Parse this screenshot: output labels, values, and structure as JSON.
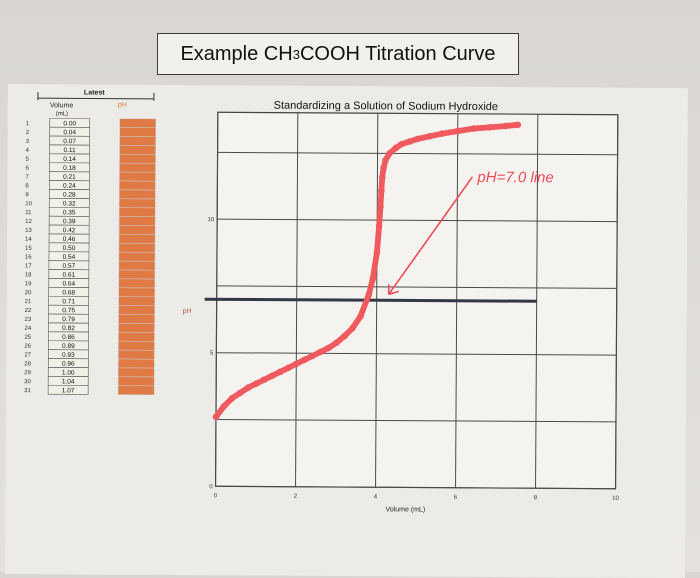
{
  "page_title": {
    "prefix": "Example CH",
    "subscript": "3",
    "suffix": "COOH Titration Curve"
  },
  "table": {
    "header_top": "Latest",
    "col1_header_line1": "Volume",
    "col1_header_line2": "(mL)",
    "col2_header": "pH",
    "row_numbers": [
      "1",
      "2",
      "3",
      "4",
      "5",
      "6",
      "7",
      "8",
      "9",
      "10",
      "11",
      "12",
      "13",
      "14",
      "15",
      "16",
      "17",
      "18",
      "19",
      "20",
      "21",
      "22",
      "23",
      "24",
      "25",
      "26",
      "27",
      "28",
      "29",
      "30",
      "31"
    ],
    "volumes": [
      "0.00",
      "0.04",
      "0.07",
      "0.11",
      "0.14",
      "0.18",
      "0.21",
      "0.24",
      "0.28",
      "0.32",
      "0.35",
      "0.39",
      "0.42",
      "0.46",
      "0.50",
      "0.54",
      "0.57",
      "0.61",
      "0.64",
      "0.68",
      "0.71",
      "0.75",
      "0.79",
      "0.82",
      "0.86",
      "0.89",
      "0.93",
      "0.96",
      "1.00",
      "1.04",
      "1.07"
    ],
    "colors": {
      "volume_cell_bg": "#eef2e6",
      "ph_cell_bg": "#e07a45",
      "ph_text": "#ffd7b8"
    }
  },
  "chart_data": {
    "type": "scatter",
    "title": "Standardizing a Solution of Sodium Hydroxide",
    "xlabel": "Volume (mL)",
    "ylabel": "pH",
    "xlim": [
      0,
      10
    ],
    "ylim": [
      0,
      14
    ],
    "x_ticks": [
      "0",
      "2",
      "4",
      "6",
      "8",
      "10"
    ],
    "y_ticks": [
      "0",
      "5",
      "10"
    ],
    "grid": true,
    "series": [
      {
        "x": [
          0.0,
          0.2,
          0.4,
          0.6,
          0.8,
          1.0,
          1.2,
          1.4,
          1.6,
          1.8,
          2.0,
          2.2,
          2.4,
          2.6,
          2.8,
          3.0,
          3.2,
          3.4,
          3.6,
          3.8,
          3.9,
          4.0,
          4.05,
          4.08,
          4.1,
          4.12,
          4.15,
          4.2,
          4.3,
          4.45,
          4.6,
          4.8,
          5.0,
          5.3,
          5.6,
          6.0,
          6.4,
          6.8,
          7.2,
          7.5
        ],
        "y": [
          2.6,
          3.0,
          3.3,
          3.5,
          3.7,
          3.85,
          4.0,
          4.15,
          4.3,
          4.45,
          4.6,
          4.75,
          4.9,
          5.05,
          5.2,
          5.4,
          5.65,
          5.95,
          6.4,
          7.2,
          7.8,
          8.8,
          9.8,
          10.5,
          11.1,
          11.6,
          11.95,
          12.25,
          12.5,
          12.7,
          12.85,
          12.95,
          13.05,
          13.15,
          13.25,
          13.35,
          13.45,
          13.5,
          13.55,
          13.6
        ]
      }
    ],
    "annotation": {
      "text": "pH=7.0 line",
      "y": 7.0
    },
    "colors": {
      "curve": "#f05a5f",
      "annotation": "#f04a52",
      "ph7_line": "#333944",
      "grid": "#4a4a4a"
    }
  }
}
